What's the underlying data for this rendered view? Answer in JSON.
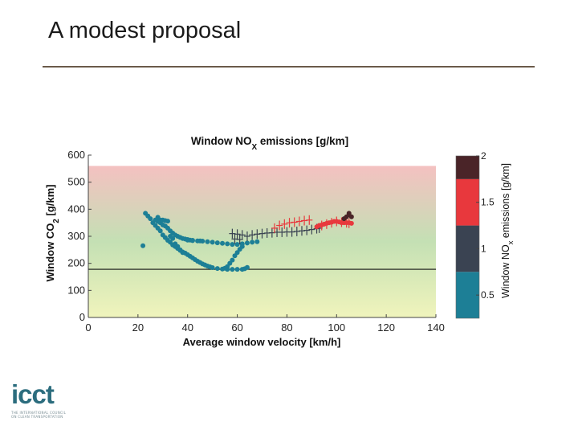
{
  "slide": {
    "title": "A modest proposal"
  },
  "logo": {
    "word": "icct",
    "tagline_1": "THE INTERNATIONAL COUNCIL",
    "tagline_2": "ON CLEAN TRANSPORTATION"
  },
  "colors": {
    "rule": "#6b5a4a",
    "teal": "#1d7f96",
    "navy": "#3a4352",
    "red": "#e8383d",
    "maroon": "#4a2428"
  },
  "chart_data": {
    "type": "scatter",
    "title": "Window NOX emissions [g/km]",
    "title_main": "Window NO",
    "title_sub": "X",
    "title_tail": " emissions [g/km]",
    "xlabel": "Average window velocity [km/h]",
    "ylabel_main": "Window CO",
    "ylabel_sub": "2",
    "ylabel_tail": " [g/km]",
    "xlim": [
      0,
      140
    ],
    "ylim": [
      0,
      600
    ],
    "xticks": [
      "0",
      "20",
      "40",
      "60",
      "80",
      "100",
      "120",
      "140"
    ],
    "yticks": [
      "0",
      "100",
      "200",
      "300",
      "400",
      "500",
      "600"
    ],
    "background_gradient_top_value": 560,
    "reference_line_y": 178,
    "colorbar": {
      "label_main": "Window NO",
      "label_sub": "x",
      "label_tail": " emissions [g/km]",
      "range": [
        0.25,
        2
      ],
      "ticks": [
        "0.5",
        "1",
        "1.5",
        "2"
      ],
      "tick_values": [
        0.5,
        1,
        1.5,
        2
      ],
      "bins": [
        {
          "from": 0.25,
          "to": 0.75,
          "color": "#1d7f96"
        },
        {
          "from": 0.75,
          "to": 1.25,
          "color": "#3a4352"
        },
        {
          "from": 1.25,
          "to": 1.75,
          "color": "#e8383d"
        },
        {
          "from": 1.75,
          "to": 2.0,
          "color": "#4a2428"
        }
      ]
    },
    "series": [
      {
        "marker": "circle",
        "color": "#1d7f96",
        "points": [
          [
            23,
            385
          ],
          [
            24,
            375
          ],
          [
            25,
            365
          ],
          [
            26,
            350
          ],
          [
            27,
            340
          ],
          [
            28,
            330
          ],
          [
            29,
            320
          ],
          [
            30,
            305
          ],
          [
            31,
            295
          ],
          [
            32,
            285
          ],
          [
            33,
            278
          ],
          [
            34,
            268
          ],
          [
            35,
            262
          ],
          [
            36,
            255
          ],
          [
            37,
            248
          ],
          [
            38,
            242
          ],
          [
            39,
            238
          ],
          [
            40,
            232
          ],
          [
            41,
            226
          ],
          [
            42,
            220
          ],
          [
            43,
            214
          ],
          [
            44,
            208
          ],
          [
            45,
            203
          ],
          [
            46,
            198
          ],
          [
            47,
            194
          ],
          [
            48,
            190
          ],
          [
            49,
            187
          ],
          [
            50,
            184
          ],
          [
            52,
            181
          ],
          [
            54,
            179
          ],
          [
            56,
            178
          ],
          [
            58,
            178
          ],
          [
            60,
            178
          ],
          [
            62,
            178
          ],
          [
            63,
            180
          ],
          [
            64,
            185
          ],
          [
            22,
            265
          ],
          [
            28,
            370
          ],
          [
            29,
            360
          ],
          [
            30,
            360
          ],
          [
            31,
            358
          ],
          [
            32,
            356
          ],
          [
            31,
            338
          ],
          [
            30,
            342
          ],
          [
            29,
            350
          ],
          [
            28,
            355
          ],
          [
            27,
            360
          ],
          [
            32,
            330
          ],
          [
            33,
            320
          ],
          [
            34,
            312
          ],
          [
            35,
            305
          ],
          [
            36,
            300
          ],
          [
            37,
            296
          ],
          [
            38,
            292
          ],
          [
            39,
            290
          ],
          [
            40,
            288
          ],
          [
            41,
            286
          ],
          [
            42,
            285
          ],
          [
            44,
            283
          ],
          [
            46,
            282
          ],
          [
            48,
            280
          ],
          [
            50,
            278
          ],
          [
            52,
            276
          ],
          [
            54,
            274
          ],
          [
            56,
            272
          ],
          [
            58,
            270
          ],
          [
            60,
            270
          ],
          [
            62,
            272
          ],
          [
            64,
            275
          ],
          [
            66,
            278
          ],
          [
            68,
            280
          ],
          [
            59,
            228
          ],
          [
            60,
            240
          ],
          [
            61,
            252
          ],
          [
            62,
            262
          ],
          [
            58,
            212
          ],
          [
            57,
            200
          ],
          [
            56,
            188
          ],
          [
            55,
            182
          ],
          [
            40,
            286
          ],
          [
            42,
            284
          ],
          [
            45,
            283
          ],
          [
            36,
            262
          ],
          [
            35,
            272
          ],
          [
            34,
            292
          ],
          [
            33,
            300
          ],
          [
            37,
            250
          ],
          [
            38,
            240
          ]
        ]
      },
      {
        "marker": "plus",
        "color": "#3a4352",
        "points": [
          [
            58,
            310
          ],
          [
            60,
            308
          ],
          [
            62,
            305
          ],
          [
            64,
            300
          ],
          [
            66,
            305
          ],
          [
            68,
            308
          ],
          [
            70,
            310
          ],
          [
            72,
            312
          ],
          [
            74,
            313
          ],
          [
            76,
            315
          ],
          [
            78,
            315
          ],
          [
            80,
            316
          ],
          [
            82,
            316
          ],
          [
            84,
            318
          ],
          [
            86,
            320
          ],
          [
            88,
            322
          ],
          [
            90,
            325
          ],
          [
            92,
            328
          ],
          [
            93,
            330
          ],
          [
            59,
            290
          ],
          [
            61,
            288
          ]
        ]
      },
      {
        "marker": "plus",
        "color": "#e8383d",
        "points": [
          [
            75,
            330
          ],
          [
            77,
            340
          ],
          [
            79,
            345
          ],
          [
            81,
            350
          ],
          [
            83,
            352
          ],
          [
            85,
            355
          ],
          [
            87,
            358
          ],
          [
            89,
            360
          ],
          [
            94,
            340
          ],
          [
            96,
            345
          ],
          [
            98,
            350
          ],
          [
            100,
            355
          ],
          [
            102,
            352
          ],
          [
            104,
            350
          ],
          [
            105,
            348
          ]
        ]
      },
      {
        "marker": "circle",
        "color": "#e8383d",
        "points": [
          [
            92,
            335
          ],
          [
            93,
            340
          ],
          [
            94,
            342
          ],
          [
            95,
            345
          ],
          [
            96,
            348
          ],
          [
            97,
            350
          ],
          [
            98,
            352
          ],
          [
            99,
            355
          ],
          [
            100,
            355
          ],
          [
            101,
            353
          ],
          [
            102,
            350
          ],
          [
            103,
            350
          ],
          [
            104,
            350
          ],
          [
            105,
            350
          ],
          [
            106,
            348
          ]
        ]
      },
      {
        "marker": "circle",
        "color": "#4a2428",
        "points": [
          [
            104,
            372
          ],
          [
            105,
            380
          ],
          [
            105,
            385
          ],
          [
            106,
            372
          ],
          [
            103,
            365
          ]
        ]
      }
    ]
  }
}
